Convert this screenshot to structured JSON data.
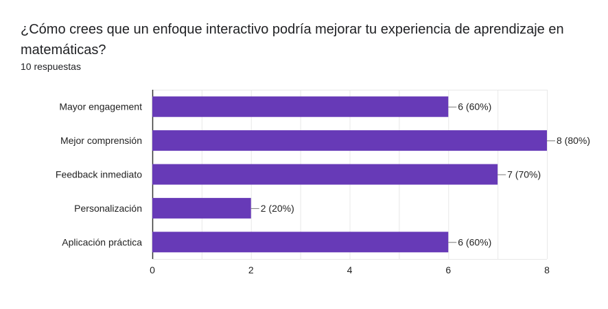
{
  "header": {
    "question": "¿Cómo crees que un enfoque interactivo podría mejorar tu experiencia de aprendizaje en matemáticas?",
    "responses": "10 respuestas"
  },
  "colors": {
    "bar": "#673ab7",
    "grid": "#e8e8e8",
    "axis": "#333333",
    "text": "#222222"
  },
  "chart_data": {
    "type": "bar",
    "orientation": "horizontal",
    "title": "",
    "xlabel": "",
    "ylabel": "",
    "categories": [
      "Mayor engagement",
      "Mejor comprensión",
      "Feedback inmediato",
      "Personalización",
      "Aplicación práctica"
    ],
    "values": [
      6,
      8,
      7,
      2,
      6
    ],
    "data_labels": [
      "6 (60%)",
      "8 (80%)",
      "7 (70%)",
      "2 (20%)",
      "6 (60%)"
    ],
    "xlim": [
      0,
      8
    ],
    "xticks": [
      0,
      2,
      4,
      6,
      8
    ],
    "grid": true,
    "legend": "none"
  }
}
